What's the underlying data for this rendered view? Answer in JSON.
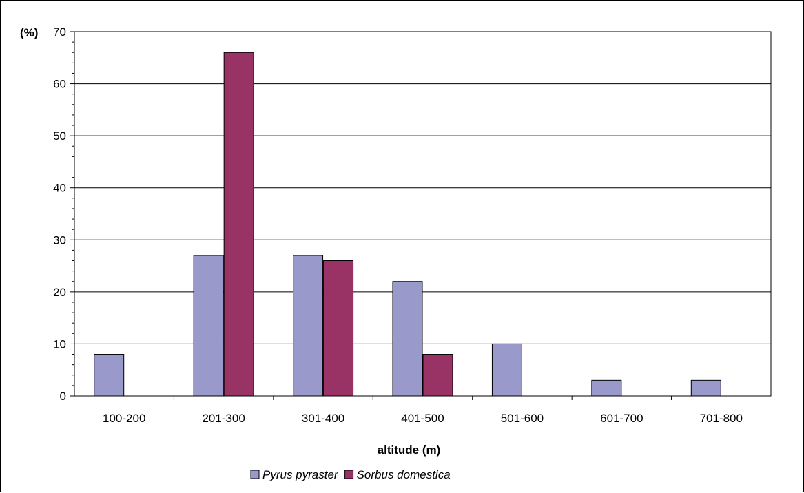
{
  "chart_data": {
    "type": "bar",
    "title": "",
    "xlabel": "altitude (m)",
    "ylabel": "(%)",
    "categories": [
      "100-200",
      "201-300",
      "301-400",
      "401-500",
      "501-600",
      "601-700",
      "701-800"
    ],
    "series": [
      {
        "name": "Pyrus pyraster",
        "color": "#9999cc",
        "values": [
          8,
          27,
          27,
          22,
          10,
          3,
          3
        ]
      },
      {
        "name": "Sorbus domestica",
        "color": "#993366",
        "values": [
          0,
          66,
          26,
          8,
          0,
          0,
          0
        ]
      }
    ],
    "ylim": [
      0,
      70
    ],
    "yticks": [
      0,
      10,
      20,
      30,
      40,
      50,
      60,
      70
    ],
    "grid": true,
    "legend_position": "bottom"
  }
}
